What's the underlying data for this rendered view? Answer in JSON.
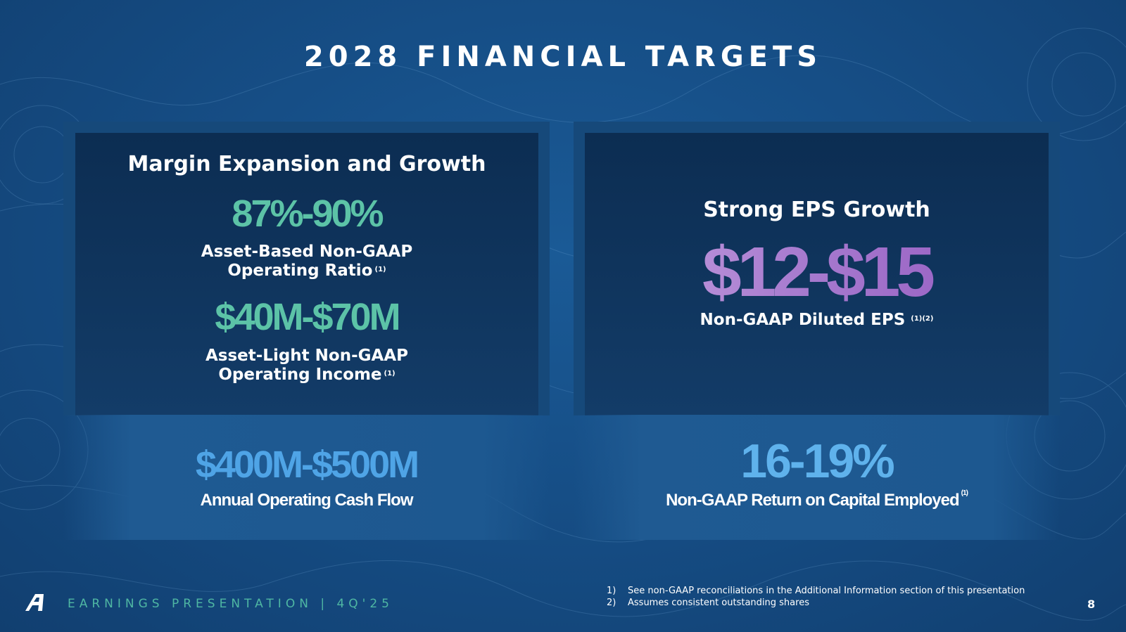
{
  "title": "2028 FINANCIAL TARGETS",
  "left_panel": {
    "heading": "Margin Expansion and Growth",
    "metric1": {
      "value": "87%-90%",
      "label_line1": "Asset-Based Non-GAAP",
      "label_line2": "Operating Ratio",
      "footnote": "(1)"
    },
    "metric2": {
      "value": "$40M-$70M",
      "label_line1": "Asset-Light Non-GAAP",
      "label_line2": "Operating Income",
      "footnote": "(1)"
    }
  },
  "right_panel": {
    "heading": "Strong EPS Growth",
    "value": "$12-$15",
    "label": "Non-GAAP Diluted EPS",
    "footnote": "(1)(2)"
  },
  "bottom_left": {
    "value": "$400M-$500M",
    "label": "Annual Operating Cash Flow"
  },
  "bottom_right": {
    "value": "16-19%",
    "label": "Non-GAAP Return on Capital Employed",
    "footnote": "(1)"
  },
  "footer": {
    "presentation": "EARNINGS PRESENTATION  |  4Q'25",
    "footnotes": [
      {
        "num": "1)",
        "text": "See non-GAAP reconciliations in the Additional Information section of this presentation"
      },
      {
        "num": "2)",
        "text": "Assumes consistent outstanding shares"
      }
    ],
    "page_number": "8"
  },
  "colors": {
    "teal": "#5cc3a7",
    "purple": "#a97fcf",
    "blue": "#4fa4e6",
    "background": "#164e86"
  }
}
